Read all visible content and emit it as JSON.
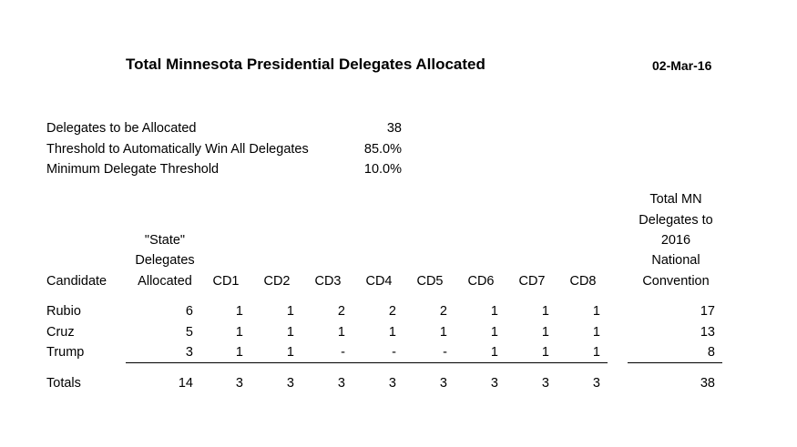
{
  "header": {
    "title": "Total Minnesota Presidential Delegates Allocated",
    "date": "02-Mar-16"
  },
  "parameters": [
    {
      "label": "Delegates to be Allocated",
      "value": "38"
    },
    {
      "label": "Threshold to Automatically Win All Delegates",
      "value": "85.0%"
    },
    {
      "label": "Minimum Delegate Threshold",
      "value": "10.0%"
    }
  ],
  "table": {
    "headers": {
      "candidate": "Candidate",
      "state_line1": "\"State\"",
      "state_line2": "Delegates",
      "state_line3": "Allocated",
      "cd": [
        "CD1",
        "CD2",
        "CD3",
        "CD4",
        "CD5",
        "CD6",
        "CD7",
        "CD8"
      ],
      "total_line1": "Total MN",
      "total_line2": "Delegates to",
      "total_line3": "2016",
      "total_line4": "National",
      "total_line5": "Convention"
    },
    "rows": [
      {
        "candidate": "Rubio",
        "state": "6",
        "cd": [
          "1",
          "1",
          "2",
          "2",
          "2",
          "1",
          "1",
          "1"
        ],
        "total": "17"
      },
      {
        "candidate": "Cruz",
        "state": "5",
        "cd": [
          "1",
          "1",
          "1",
          "1",
          "1",
          "1",
          "1",
          "1"
        ],
        "total": "13"
      },
      {
        "candidate": "Trump",
        "state": "3",
        "cd": [
          "1",
          "1",
          "-",
          "-",
          "-",
          "1",
          "1",
          "1"
        ],
        "total": "8"
      }
    ],
    "totals": {
      "label": "Totals",
      "state": "14",
      "cd": [
        "3",
        "3",
        "3",
        "3",
        "3",
        "3",
        "3",
        "3"
      ],
      "total": "38"
    }
  }
}
